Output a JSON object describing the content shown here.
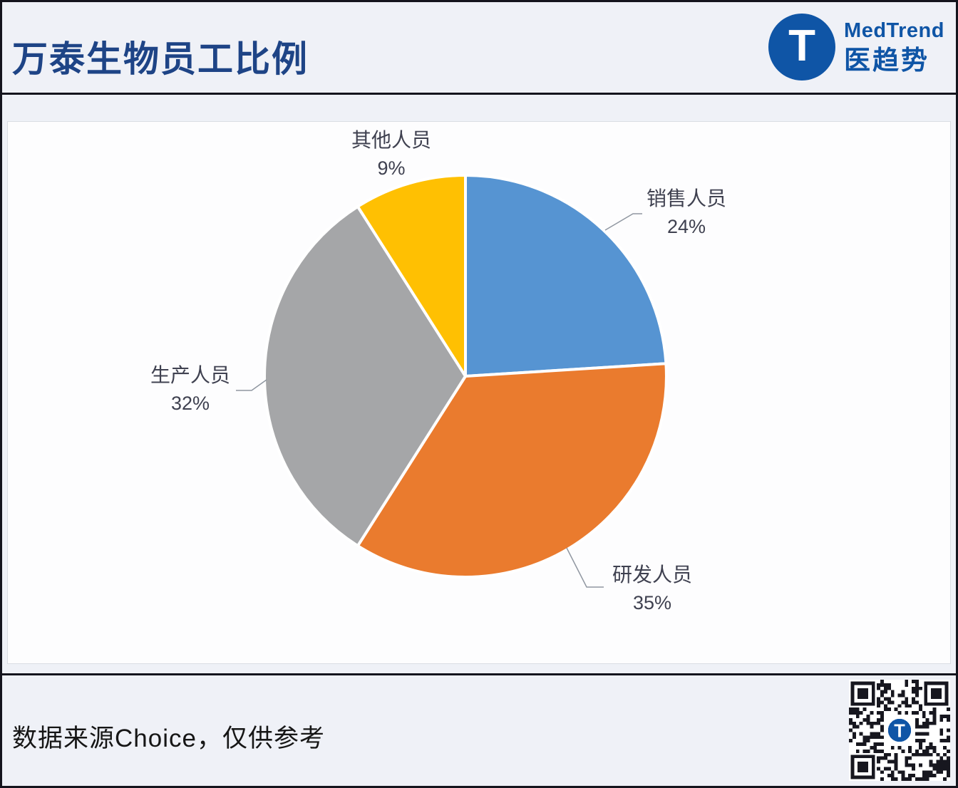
{
  "header": {
    "title": "万泰生物员工比例"
  },
  "logo": {
    "monogram": "T",
    "name_en": "MedTrend",
    "name_zh": "医趋势",
    "brand_color": "#0f55a6"
  },
  "chart_data": {
    "type": "pie",
    "title": "万泰生物员工比例",
    "start_angle_deg": 0,
    "direction": "clockwise",
    "total": 100,
    "legend_position": "none",
    "label_style": "outside; category name above percent value",
    "slices": [
      {
        "label": "销售人员",
        "value": 24,
        "pct_label": "24%",
        "color": "#5694d2"
      },
      {
        "label": "研发人员",
        "value": 35,
        "pct_label": "35%",
        "color": "#ea7b2e"
      },
      {
        "label": "生产人员",
        "value": 32,
        "pct_label": "32%",
        "color": "#a5a6a8"
      },
      {
        "label": "其他人员",
        "value": 9,
        "pct_label": "9%",
        "color": "#ffc002"
      }
    ]
  },
  "footer": {
    "source_note": "数据来源Choice，仅供参考"
  },
  "colors": {
    "title_text": "#1e4486",
    "label_text": "#3f4150",
    "page_bg": "#eff1f7",
    "panel_bg": "#fdfdfe",
    "divider": "#14141d",
    "slice_border": "#ffffff"
  }
}
